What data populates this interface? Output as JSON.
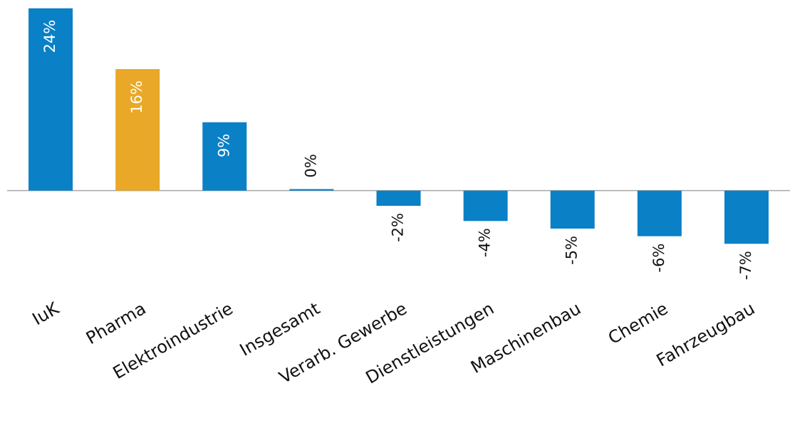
{
  "chart_data": {
    "type": "bar",
    "categories": [
      "IuK",
      "Pharma",
      "Elektroindustrie",
      "Insgesamt",
      "Verarb. Gewerbe",
      "Dienstleistungen",
      "Maschinenbau",
      "Chemie",
      "Fahrzeugbau"
    ],
    "values": [
      24,
      16,
      9,
      0.2,
      -2,
      -4,
      -5,
      -6,
      -7
    ],
    "value_labels": [
      "24%",
      "16%",
      "9%",
      "0%",
      "-2%",
      "-4%",
      "-5%",
      "-6%",
      "-7%"
    ],
    "colors": [
      "#0a80c6",
      "#e9a827",
      "#0a80c6",
      "#0a80c6",
      "#0a80c6",
      "#0a80c6",
      "#0a80c6",
      "#0a80c6",
      "#0a80c6"
    ],
    "ylim": [
      -8,
      25
    ]
  }
}
